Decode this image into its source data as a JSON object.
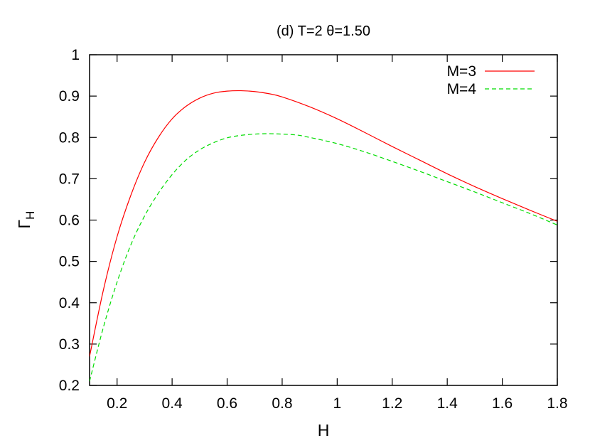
{
  "chart_data": {
    "type": "line",
    "title": "(d) T=2 θ=1.50",
    "xlabel": "H",
    "ylabel_main": "Γ",
    "ylabel_sub": "H",
    "xlim": [
      0.1,
      1.8
    ],
    "ylim": [
      0.2,
      1.0
    ],
    "xticks": [
      0.2,
      0.4,
      0.6,
      0.8,
      1.0,
      1.2,
      1.4,
      1.6,
      1.8
    ],
    "xtick_labels": [
      "0.2",
      "0.4",
      "0.6",
      "0.8",
      "1",
      "1.2",
      "1.4",
      "1.6",
      "1.8"
    ],
    "yticks": [
      0.2,
      0.3,
      0.4,
      0.5,
      0.6,
      0.7,
      0.8,
      0.9,
      1.0
    ],
    "ytick_labels": [
      "0.2",
      "0.3",
      "0.4",
      "0.5",
      "0.6",
      "0.7",
      "0.8",
      "0.9",
      "1"
    ],
    "grid": false,
    "legend_position": "top-right",
    "series": [
      {
        "name": "M=3",
        "color": "#ff0000",
        "dash": "solid",
        "x": [
          0.1,
          0.15,
          0.2,
          0.25,
          0.3,
          0.35,
          0.4,
          0.45,
          0.5,
          0.55,
          0.6,
          0.65,
          0.7,
          0.75,
          0.8,
          0.9,
          1.0,
          1.1,
          1.2,
          1.3,
          1.4,
          1.5,
          1.6,
          1.7,
          1.8
        ],
        "y": [
          0.27,
          0.43,
          0.56,
          0.66,
          0.74,
          0.8,
          0.845,
          0.875,
          0.895,
          0.907,
          0.912,
          0.913,
          0.911,
          0.906,
          0.898,
          0.874,
          0.845,
          0.812,
          0.778,
          0.745,
          0.712,
          0.681,
          0.652,
          0.624,
          0.597
        ]
      },
      {
        "name": "M=4",
        "color": "#00dd00",
        "dash": "dashed",
        "x": [
          0.1,
          0.15,
          0.2,
          0.25,
          0.3,
          0.35,
          0.4,
          0.45,
          0.5,
          0.55,
          0.6,
          0.65,
          0.7,
          0.75,
          0.8,
          0.85,
          0.9,
          1.0,
          1.1,
          1.2,
          1.3,
          1.4,
          1.5,
          1.6,
          1.7,
          1.8
        ],
        "y": [
          0.21,
          0.34,
          0.45,
          0.54,
          0.61,
          0.665,
          0.71,
          0.745,
          0.77,
          0.787,
          0.799,
          0.805,
          0.808,
          0.809,
          0.808,
          0.806,
          0.8,
          0.785,
          0.765,
          0.742,
          0.718,
          0.693,
          0.668,
          0.642,
          0.616,
          0.588
        ]
      }
    ]
  }
}
